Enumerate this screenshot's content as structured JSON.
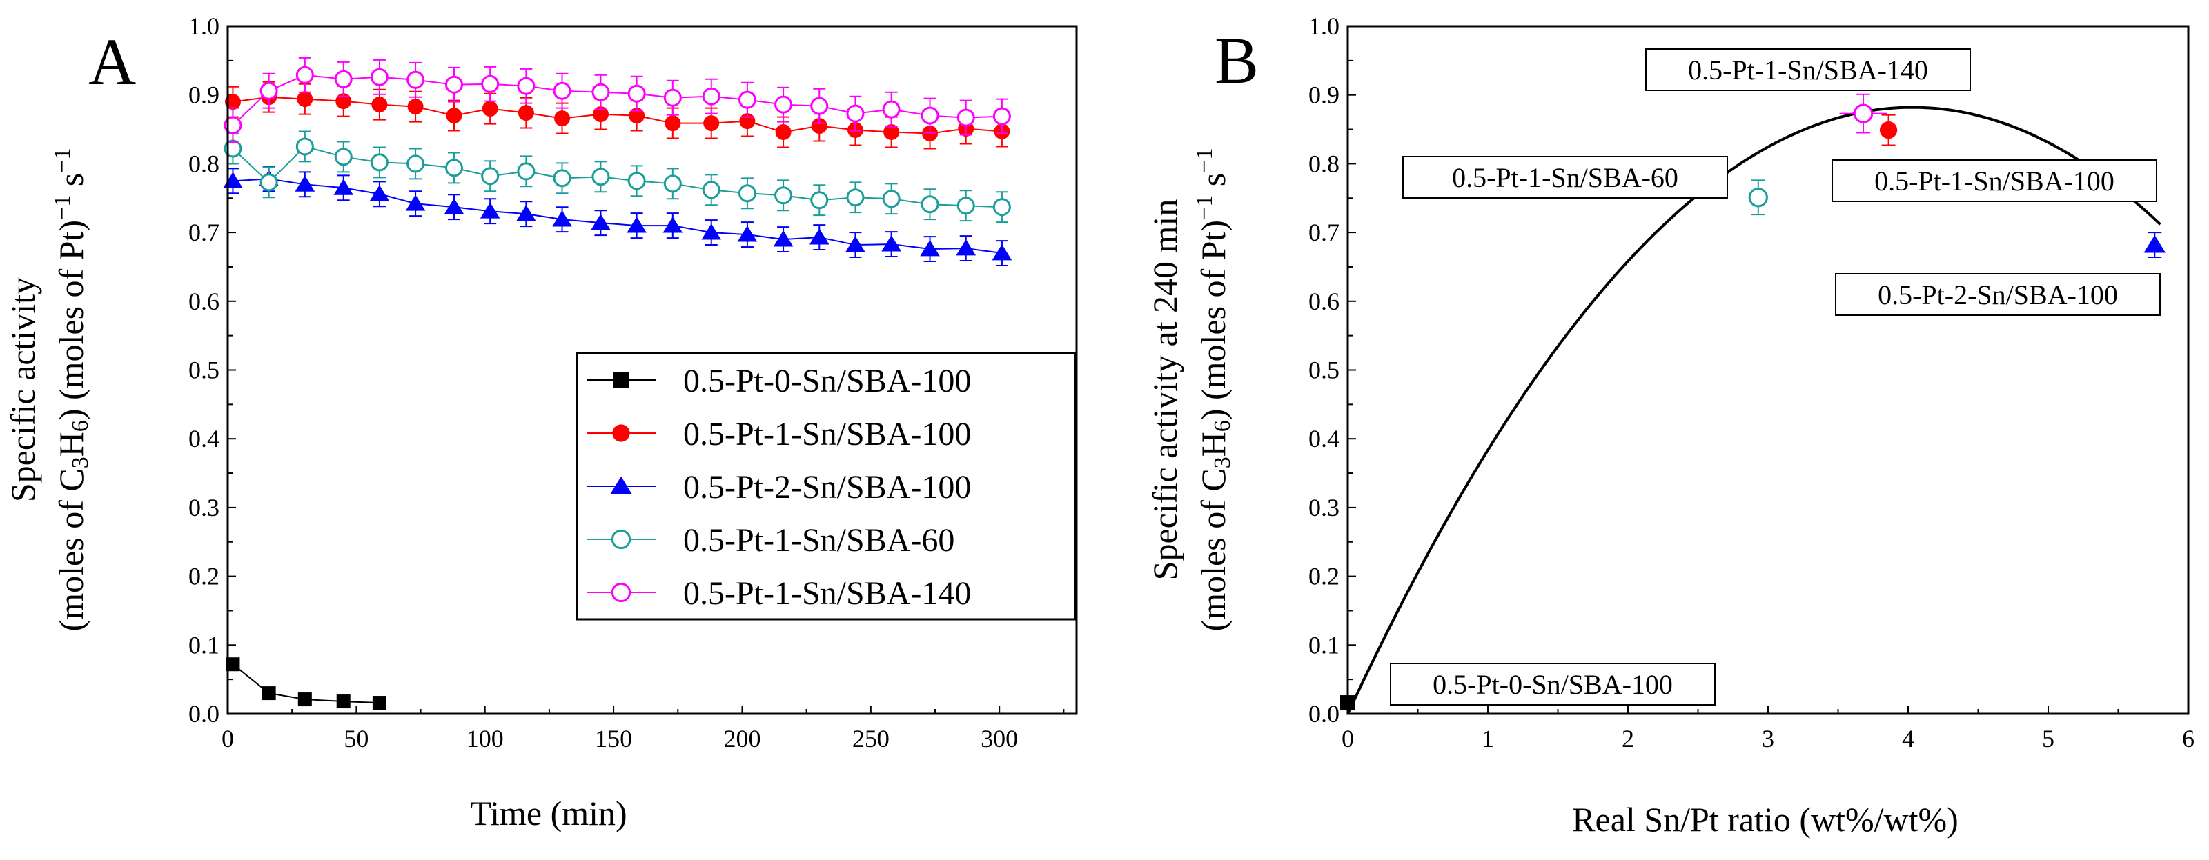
{
  "chart_data": [
    {
      "panel": "A",
      "type": "line",
      "title": "",
      "xlabel": "Time (min)",
      "ylabel_line1": "Specific activity",
      "ylabel_line2": "(moles of C3H6) (moles of Pt)−1 s−1",
      "xlim": [
        0,
        330
      ],
      "ylim": [
        0,
        1.0
      ],
      "xticks": [
        0,
        50,
        100,
        150,
        200,
        250,
        300
      ],
      "yticks": [
        0.0,
        0.1,
        0.2,
        0.3,
        0.4,
        0.5,
        0.6,
        0.7,
        0.8,
        0.9,
        1.0
      ],
      "legend_position": "center-right",
      "series": [
        {
          "name": "0.5-Pt-0-Sn/SBA-100",
          "color": "#000000",
          "marker": "filled-square",
          "x": [
            2,
            16,
            30,
            45,
            59
          ],
          "y": [
            0.072,
            0.03,
            0.021,
            0.018,
            0.016
          ],
          "err": [
            0,
            0,
            0,
            0,
            0
          ]
        },
        {
          "name": "0.5-Pt-1-Sn/SBA-100",
          "color": "#ff0000",
          "marker": "filled-circle",
          "x": [
            2,
            16,
            30,
            45,
            59,
            73,
            88,
            102,
            116,
            130,
            145,
            159,
            173,
            188,
            202,
            216,
            230,
            244,
            258,
            273,
            287,
            301
          ],
          "y": [
            0.89,
            0.897,
            0.894,
            0.891,
            0.886,
            0.883,
            0.87,
            0.88,
            0.874,
            0.866,
            0.872,
            0.87,
            0.859,
            0.859,
            0.862,
            0.846,
            0.855,
            0.849,
            0.846,
            0.844,
            0.851,
            0.847
          ],
          "err": [
            0.022,
            0.022,
            0.022,
            0.022,
            0.022,
            0.022,
            0.022,
            0.022,
            0.022,
            0.022,
            0.022,
            0.022,
            0.022,
            0.022,
            0.022,
            0.022,
            0.022,
            0.022,
            0.022,
            0.022,
            0.022,
            0.022
          ]
        },
        {
          "name": "0.5-Pt-2-Sn/SBA-100",
          "color": "#0000ff",
          "marker": "filled-triangle",
          "x": [
            2,
            16,
            30,
            45,
            59,
            73,
            88,
            102,
            116,
            130,
            145,
            159,
            173,
            188,
            202,
            216,
            230,
            244,
            258,
            273,
            287,
            301
          ],
          "y": [
            0.775,
            0.778,
            0.77,
            0.765,
            0.756,
            0.742,
            0.737,
            0.731,
            0.727,
            0.719,
            0.714,
            0.71,
            0.71,
            0.7,
            0.697,
            0.69,
            0.693,
            0.682,
            0.683,
            0.676,
            0.677,
            0.67
          ],
          "err": [
            0.018,
            0.018,
            0.018,
            0.018,
            0.018,
            0.018,
            0.018,
            0.018,
            0.018,
            0.018,
            0.018,
            0.018,
            0.018,
            0.018,
            0.018,
            0.018,
            0.018,
            0.018,
            0.018,
            0.018,
            0.018,
            0.018
          ]
        },
        {
          "name": "0.5-Pt-1-Sn/SBA-60",
          "color": "#1a9e9a",
          "marker": "open-circle",
          "x": [
            2,
            16,
            30,
            45,
            59,
            73,
            88,
            102,
            116,
            130,
            145,
            159,
            173,
            188,
            202,
            216,
            230,
            244,
            258,
            273,
            287,
            301
          ],
          "y": [
            0.822,
            0.773,
            0.825,
            0.81,
            0.802,
            0.8,
            0.794,
            0.782,
            0.789,
            0.779,
            0.781,
            0.775,
            0.771,
            0.762,
            0.757,
            0.754,
            0.747,
            0.751,
            0.749,
            0.741,
            0.739,
            0.737
          ],
          "err": [
            0.022,
            0.022,
            0.022,
            0.022,
            0.022,
            0.022,
            0.022,
            0.022,
            0.022,
            0.022,
            0.022,
            0.022,
            0.022,
            0.022,
            0.022,
            0.022,
            0.022,
            0.022,
            0.022,
            0.022,
            0.022,
            0.022
          ]
        },
        {
          "name": "0.5-Pt-1-Sn/SBA-140",
          "color": "#ff00ff",
          "marker": "open-circle",
          "x": [
            2,
            16,
            30,
            45,
            59,
            73,
            88,
            102,
            116,
            130,
            145,
            159,
            173,
            188,
            202,
            216,
            230,
            244,
            258,
            273,
            287,
            301
          ],
          "y": [
            0.856,
            0.906,
            0.929,
            0.923,
            0.926,
            0.922,
            0.915,
            0.916,
            0.913,
            0.906,
            0.904,
            0.902,
            0.896,
            0.898,
            0.893,
            0.886,
            0.884,
            0.873,
            0.879,
            0.87,
            0.867,
            0.869
          ],
          "err": [
            0.025,
            0.025,
            0.025,
            0.025,
            0.025,
            0.025,
            0.025,
            0.025,
            0.025,
            0.025,
            0.025,
            0.025,
            0.025,
            0.025,
            0.025,
            0.025,
            0.025,
            0.025,
            0.025,
            0.025,
            0.025,
            0.025
          ]
        }
      ]
    },
    {
      "panel": "B",
      "type": "scatter",
      "title": "",
      "xlabel": "Real Sn/Pt ratio (wt%/wt%)",
      "ylabel_line1": "Specific activity at 240 min",
      "ylabel_line2": "(moles of C3H6) (moles of Pt)−1 s−1",
      "xlim": [
        0,
        6
      ],
      "ylim": [
        0,
        1.0
      ],
      "xticks": [
        0,
        1,
        2,
        3,
        4,
        5,
        6
      ],
      "yticks": [
        0.0,
        0.1,
        0.2,
        0.3,
        0.4,
        0.5,
        0.6,
        0.7,
        0.8,
        0.9,
        1.0
      ],
      "points": [
        {
          "label": "0.5-Pt-0-Sn/SBA-100",
          "x": 0.0,
          "y": 0.016,
          "err": 0.0,
          "xerr": 0.0,
          "color": "#000000",
          "marker": "filled-square"
        },
        {
          "label": "0.5-Pt-1-Sn/SBA-60",
          "x": 2.93,
          "y": 0.751,
          "err": 0.025,
          "xerr": 0.0,
          "color": "#1a9e9a",
          "marker": "open-circle"
        },
        {
          "label": "0.5-Pt-1-Sn/SBA-140",
          "x": 3.68,
          "y": 0.873,
          "err": 0.028,
          "xerr": 0.17,
          "color": "#ff00ff",
          "marker": "open-circle"
        },
        {
          "label": "0.5-Pt-1-Sn/SBA-100",
          "x": 3.86,
          "y": 0.849,
          "err": 0.022,
          "xerr": 0.0,
          "color": "#ff0000",
          "marker": "filled-circle"
        },
        {
          "label": "0.5-Pt-2-Sn/SBA-100",
          "x": 5.76,
          "y": 0.682,
          "err": 0.018,
          "xerr": 0.0,
          "color": "#0000ff",
          "marker": "filled-triangle"
        }
      ],
      "fit_curve": {
        "type": "quadratic",
        "vertex_x": 4.03,
        "vertex_y": 0.882,
        "y_at_zero": 0.0,
        "color": "#000000"
      }
    }
  ]
}
